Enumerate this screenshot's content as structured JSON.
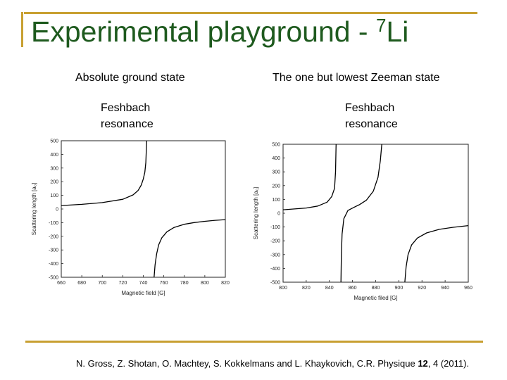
{
  "title": {
    "main": "Experimental playground - ",
    "sup": "7",
    "element": "Li"
  },
  "left_panel": {
    "heading": "Absolute ground state",
    "label_line1": "Feshbach",
    "label_line2": "resonance"
  },
  "right_panel": {
    "heading": "The one but lowest Zeeman state",
    "label_line1": "Feshbach",
    "label_line2": "resonance"
  },
  "citation": {
    "before": "N. Gross, Z. Shotan, O. Machtey, S. Kokkelmans and L. Khaykovich, C.R. Physique ",
    "volume": "12",
    "after": ", 4 (2011)."
  },
  "colors": {
    "title": "#1e5a1e",
    "frame": "#c8a032",
    "curve": "#000000"
  },
  "chart_data": [
    {
      "type": "line",
      "xlabel": "Magnetic field [G]",
      "ylabel": "Scattering length [a₀]",
      "xlim": [
        660,
        820
      ],
      "ylim": [
        -500,
        500
      ],
      "xticks": [
        660,
        680,
        700,
        720,
        740,
        760,
        780,
        800,
        820
      ],
      "yticks": [
        -500,
        -400,
        -300,
        -200,
        -100,
        0,
        100,
        200,
        300,
        400,
        500
      ],
      "series": [
        {
          "segments": [
            {
              "x": [
                660,
                680,
                700,
                720,
                730,
                735,
                738,
                740,
                741.5,
                742.5,
                743.3
              ],
              "y": [
                25,
                34,
                47,
                71,
                103,
                136,
                175,
                220,
                270,
                340,
                500
              ]
            },
            {
              "x": [
                750.5,
                751.5,
                753,
                755,
                758,
                763,
                770,
                780,
                790,
                800,
                810,
                820
              ],
              "y": [
                -500,
                -410,
                -330,
                -263,
                -212,
                -167,
                -135,
                -112,
                -99,
                -90,
                -83,
                -78
              ]
            }
          ]
        }
      ]
    },
    {
      "type": "line",
      "xlabel": "Magnetic filed [G]",
      "ylabel": "Scattering length [a₀]",
      "xlim": [
        800,
        960
      ],
      "ylim": [
        -500,
        500
      ],
      "xticks": [
        800,
        820,
        840,
        860,
        880,
        900,
        920,
        940,
        960
      ],
      "yticks": [
        -500,
        -400,
        -300,
        -200,
        -100,
        0,
        100,
        200,
        300,
        400,
        500
      ],
      "series": [
        {
          "segments": [
            {
              "x": [
                800,
                820,
                830,
                838,
                842,
                844.5,
                845.3,
                845.8
              ],
              "y": [
                25,
                38,
                52,
                80,
                120,
                180,
                300,
                500
              ]
            },
            {
              "x": [
                850,
                850.4,
                851,
                852.5,
                856,
                861,
                866,
                872,
                878,
                882,
                884,
                885.3
              ],
              "y": [
                -500,
                -300,
                -150,
                -40,
                20,
                42,
                62,
                95,
                160,
                260,
                380,
                500
              ]
            },
            {
              "x": [
                905.2,
                906.3,
                908,
                911,
                916,
                924,
                935,
                947,
                960
              ],
              "y": [
                -500,
                -390,
                -300,
                -230,
                -180,
                -143,
                -117,
                -102,
                -90
              ]
            }
          ]
        }
      ]
    }
  ]
}
